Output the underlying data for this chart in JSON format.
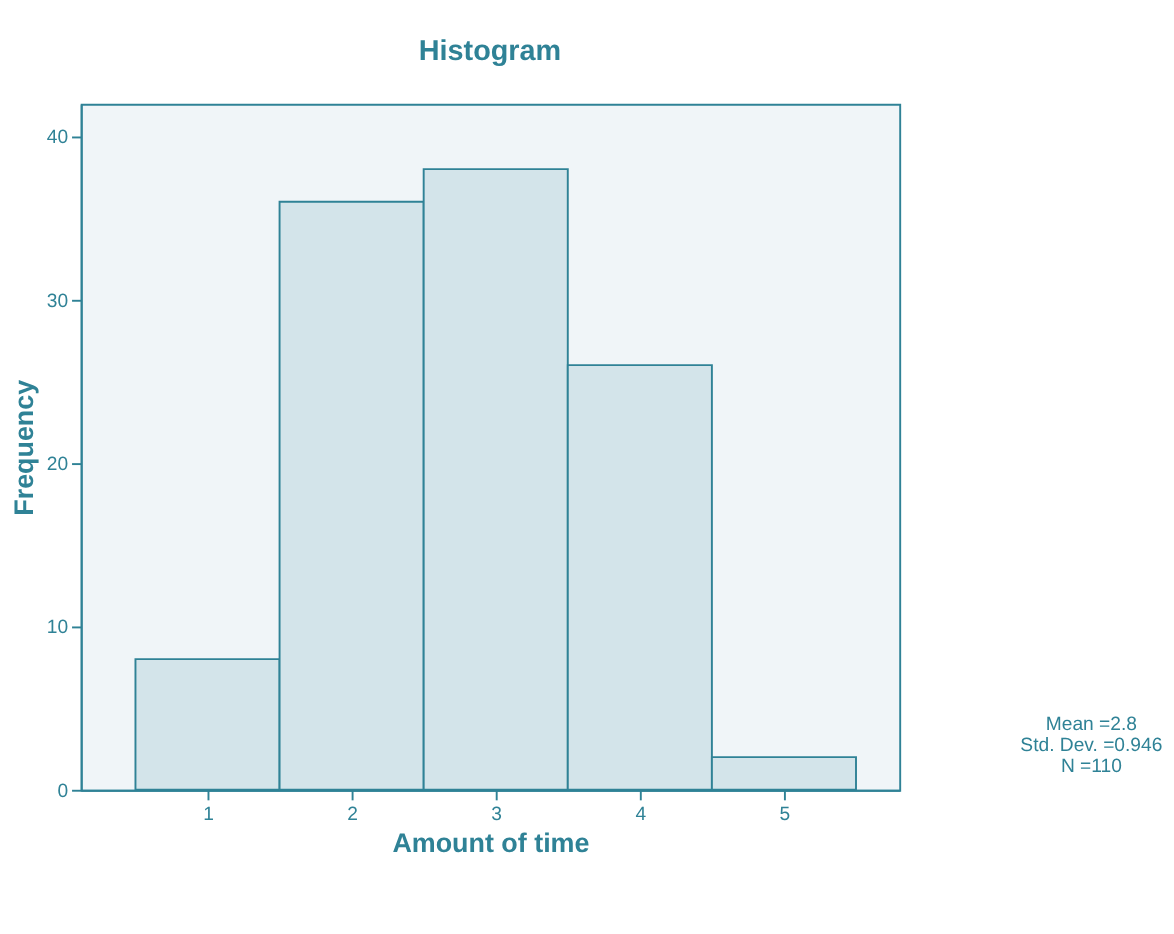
{
  "chart_data": {
    "type": "histogram",
    "title": "Histogram",
    "xlabel": "Amount of time",
    "ylabel": "Frequency",
    "bins": [
      0.5,
      1.5,
      2.5,
      3.5,
      4.5,
      5.5
    ],
    "values": [
      8,
      36,
      38,
      26,
      2
    ],
    "color": "#d3e4ea",
    "xlim": [
      0.12,
      5.8
    ],
    "xticks": [
      1,
      2,
      3,
      4,
      5
    ],
    "ylim": [
      0,
      42
    ],
    "yticks": [
      0,
      10,
      20,
      30,
      40
    ],
    "grid": false,
    "annotations": [
      "Mean =2.8",
      "Std. Dev. =0.946",
      "N =110"
    ]
  }
}
